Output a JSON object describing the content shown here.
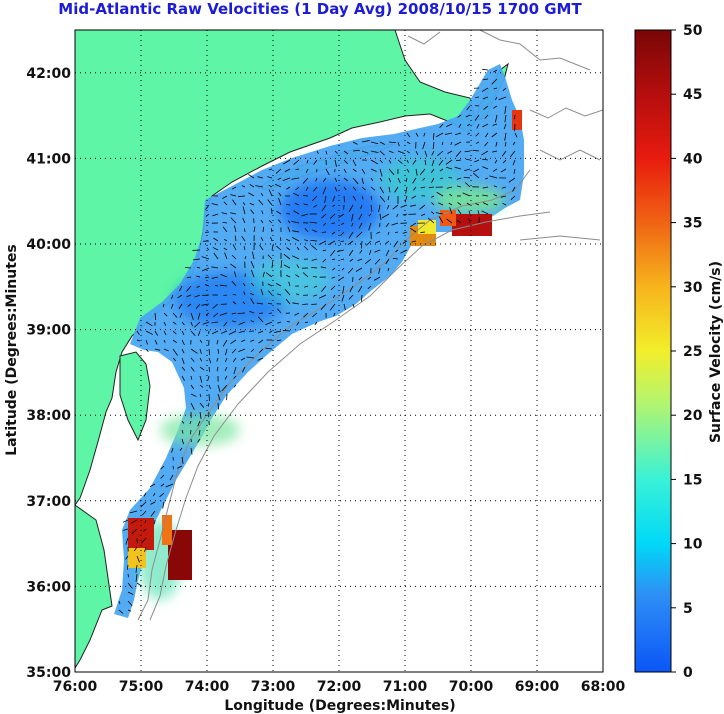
{
  "title": "Mid-Atlantic Raw Velocities (1 Day Avg) 2008/10/15 1700 GMT",
  "axes": {
    "xlabel": "Longitude (Degrees:Minutes)",
    "ylabel": "Latitude (Degrees:Minutes",
    "x_ticks": [
      "76:00",
      "75:00",
      "74:00",
      "73:00",
      "72:00",
      "71:00",
      "70:00",
      "69:00",
      "68:00"
    ],
    "y_ticks": [
      "35:00",
      "36:00",
      "37:00",
      "38:00",
      "39:00",
      "40:00",
      "41:00",
      "42:00"
    ],
    "xlim": [
      -76,
      -68
    ],
    "ylim": [
      35,
      42.5
    ],
    "grid": "dotted"
  },
  "colorbar": {
    "label": "Surface Velocity (cm/s)",
    "ticks": [
      "0",
      "5",
      "10",
      "15",
      "20",
      "25",
      "30",
      "35",
      "40",
      "45",
      "50"
    ],
    "range": [
      0,
      50
    ],
    "colormap": "jet"
  },
  "colors": {
    "land": "#5ef5a6",
    "coast": "#222222",
    "bathymetry": "#8c8c8c",
    "title": "#1c1cd8"
  },
  "chart_data": {
    "type": "heatmap",
    "variable": "surface current speed (cm/s) with vector arrows",
    "hotspots": [
      {
        "lon": -74.6,
        "lat": 36.3,
        "speed": 48
      },
      {
        "lon": -75.0,
        "lat": 36.6,
        "speed": 44
      },
      {
        "lon": -70.0,
        "lat": 40.2,
        "speed": 45
      },
      {
        "lon": -70.9,
        "lat": 40.0,
        "speed": 38
      }
    ]
  }
}
